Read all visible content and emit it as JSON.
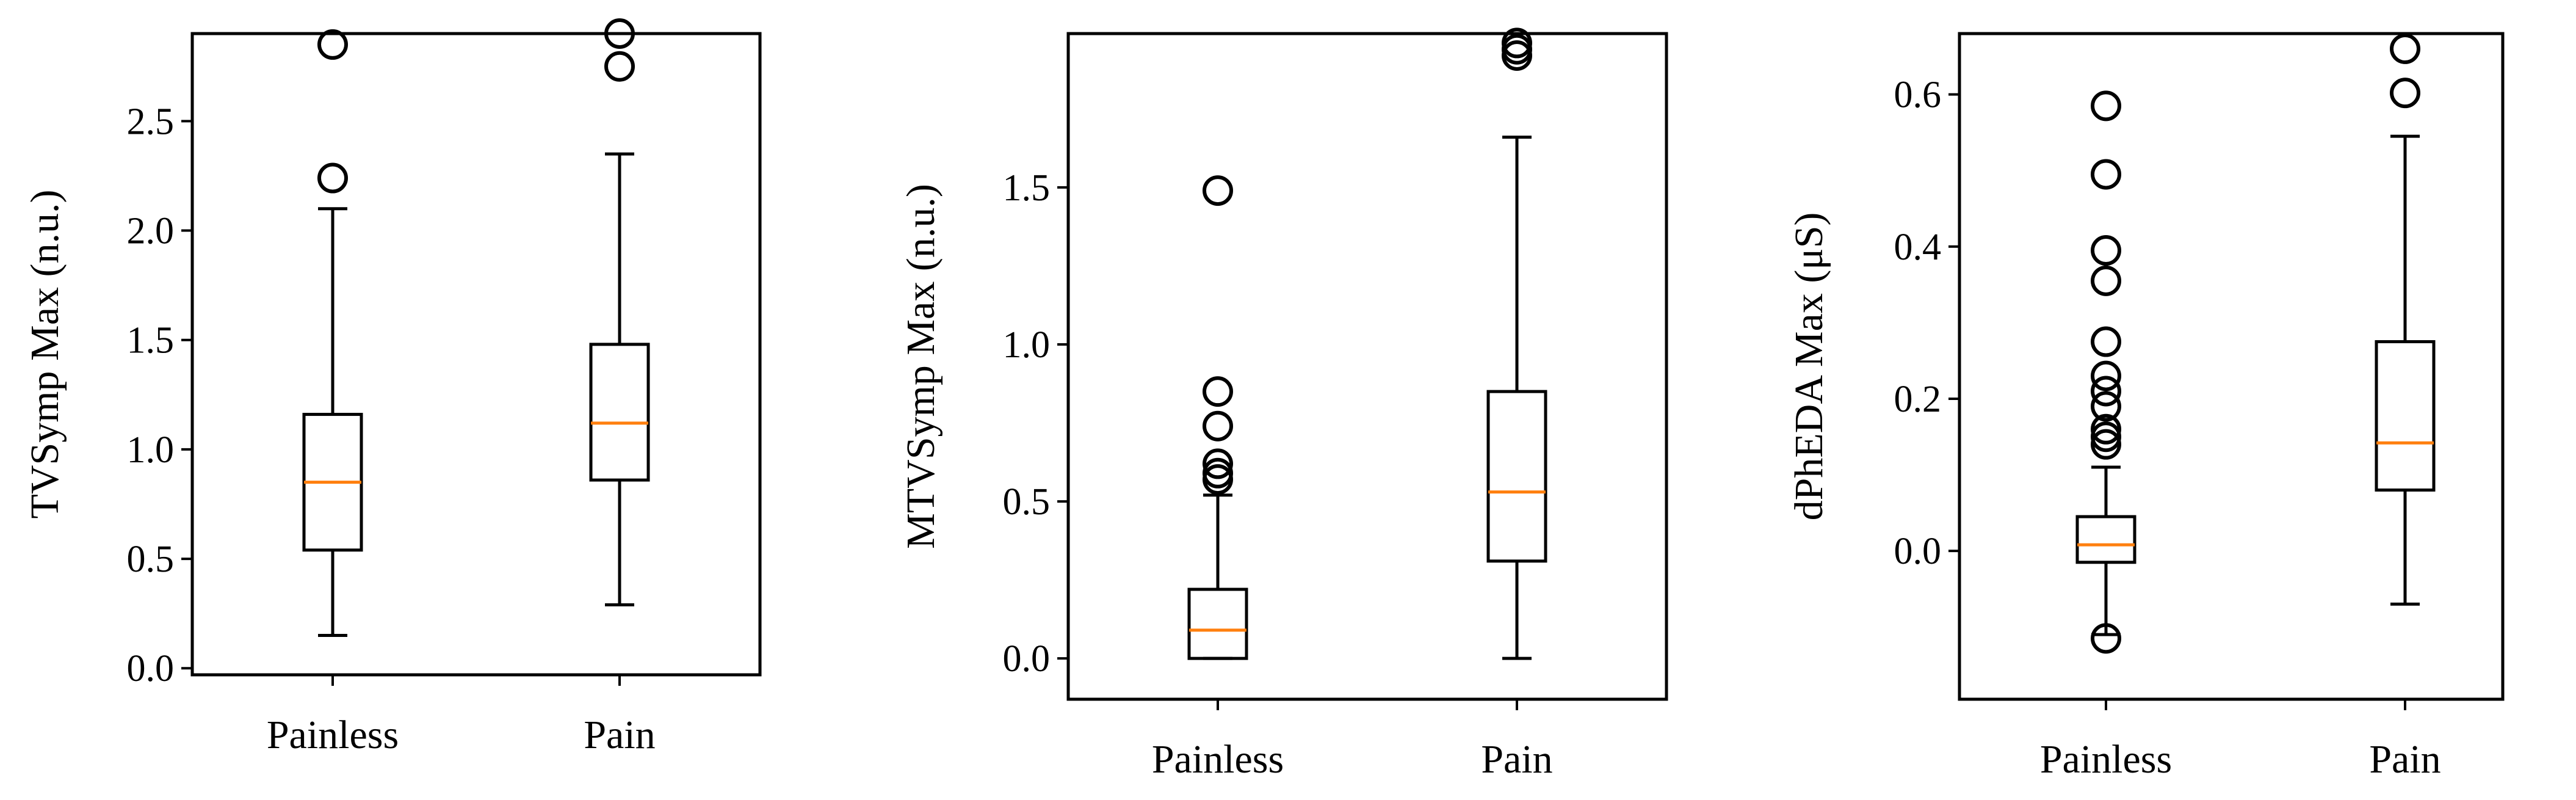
{
  "chart_data": [
    {
      "type": "box",
      "ylabel": "TVSymp Max (n.u.)",
      "ylim": [
        -0.03,
        2.9
      ],
      "yticks": [
        0.0,
        0.5,
        1.0,
        1.5,
        2.0,
        2.5
      ],
      "ytick_labels": [
        "0.0",
        "0.5",
        "1.0",
        "1.5",
        "2.0",
        "2.5"
      ],
      "categories": [
        "Painless",
        "Pain"
      ],
      "boxes": [
        {
          "name": "Painless",
          "whisker_low": 0.15,
          "q1": 0.54,
          "median": 0.85,
          "q3": 1.16,
          "whisker_high": 2.1,
          "outliers": [
            2.24,
            2.85
          ]
        },
        {
          "name": "Pain",
          "whisker_low": 0.29,
          "q1": 0.86,
          "median": 1.12,
          "q3": 1.48,
          "whisker_high": 2.35,
          "outliers": [
            2.75,
            2.9
          ]
        }
      ]
    },
    {
      "type": "box",
      "ylabel": "MTVSymp Max (n.u.)",
      "ylim": [
        -0.13,
        1.99
      ],
      "yticks": [
        0.0,
        0.5,
        1.0,
        1.5
      ],
      "ytick_labels": [
        "0.0",
        "0.5",
        "1.0",
        "1.5"
      ],
      "categories": [
        "Painless",
        "Pain"
      ],
      "boxes": [
        {
          "name": "Painless",
          "whisker_low": 0.0,
          "q1": 0.0,
          "median": 0.09,
          "q3": 0.22,
          "whisker_high": 0.52,
          "outliers": [
            0.57,
            0.59,
            0.62,
            0.74,
            0.85,
            1.49
          ]
        },
        {
          "name": "Pain",
          "whisker_low": 0.0,
          "q1": 0.31,
          "median": 0.53,
          "q3": 0.85,
          "whisker_high": 1.66,
          "outliers": [
            1.92,
            1.94,
            1.96
          ]
        }
      ]
    },
    {
      "type": "box",
      "ylabel": "dPhEDA Max (μS)",
      "ylim": [
        -0.195,
        0.68
      ],
      "yticks": [
        0.0,
        0.2,
        0.4,
        0.6
      ],
      "ytick_labels": [
        "0.0",
        "0.2",
        "0.4",
        "0.6"
      ],
      "categories": [
        "Painless",
        "Pain"
      ],
      "boxes": [
        {
          "name": "Painless",
          "whisker_low": -0.11,
          "q1": -0.015,
          "median": 0.008,
          "q3": 0.045,
          "whisker_high": 0.11,
          "outliers": [
            -0.115,
            0.14,
            0.15,
            0.16,
            0.19,
            0.21,
            0.23,
            0.275,
            0.355,
            0.395,
            0.495,
            0.585
          ]
        },
        {
          "name": "Pain",
          "whisker_low": -0.07,
          "q1": 0.08,
          "median": 0.142,
          "q3": 0.275,
          "whisker_high": 0.545,
          "outliers": [
            0.602,
            0.66
          ]
        }
      ]
    }
  ]
}
